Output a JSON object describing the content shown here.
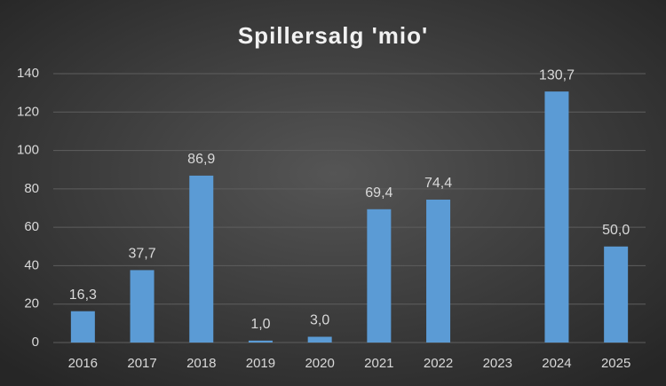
{
  "chart_data": {
    "type": "bar",
    "title": "Spillersalg 'mio'",
    "categories": [
      "2016",
      "2017",
      "2018",
      "2019",
      "2020",
      "2021",
      "2022",
      "2023",
      "2024",
      "2025"
    ],
    "values": [
      16.3,
      37.7,
      86.9,
      1.0,
      3.0,
      69.4,
      74.4,
      null,
      130.7,
      50.0
    ],
    "value_labels": [
      "16,3",
      "37,7",
      "86,9",
      "1,0",
      "3,0",
      "69,4",
      "74,4",
      null,
      "130,7",
      "50,0"
    ],
    "color": "#5b9bd5",
    "ylim": [
      0,
      140
    ],
    "yticks": [
      0,
      20,
      40,
      60,
      80,
      100,
      120,
      140
    ],
    "grid": true
  }
}
